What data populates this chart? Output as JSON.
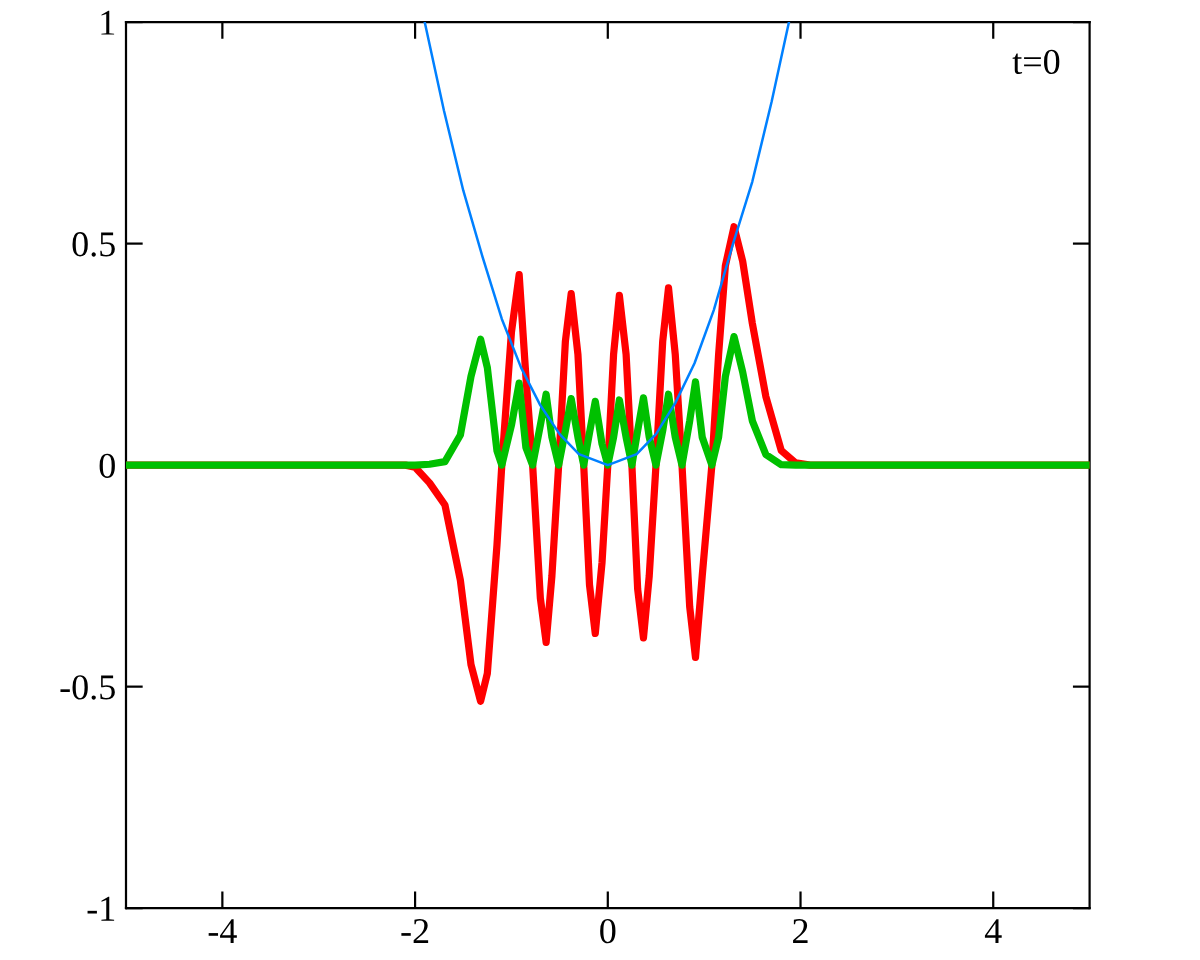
{
  "chart_data": {
    "type": "line",
    "xlim": [
      -5,
      5
    ],
    "ylim": [
      -1,
      1
    ],
    "xticks": [
      -4,
      -2,
      0,
      2,
      4
    ],
    "yticks": [
      -1,
      -0.5,
      0,
      0.5,
      1
    ],
    "grid": false,
    "legend": false,
    "marker": "none",
    "line_style": "solid",
    "annotations": [
      "t=0"
    ],
    "series": [
      {
        "color": "#0080ff",
        "x": [
          -1.9,
          -1.7,
          -1.5,
          -1.3,
          -1.1,
          -0.9,
          -0.7,
          -0.5,
          -0.3,
          0,
          0.3,
          0.5,
          0.7,
          0.9,
          1.1,
          1.3,
          1.5,
          1.7,
          1.88
        ],
        "values": [
          1.0,
          0.8,
          0.62,
          0.47,
          0.33,
          0.22,
          0.135,
          0.07,
          0.025,
          0,
          0.025,
          0.07,
          0.14,
          0.23,
          0.35,
          0.5,
          0.64,
          0.82,
          1.0
        ]
      },
      {
        "color": "#ff0000",
        "x": [
          -5,
          -2.1,
          -2.0,
          -1.85,
          -1.69,
          -1.53,
          -1.42,
          -1.32,
          -1.25,
          -1.15,
          -1.1,
          -1.0,
          -0.92,
          -0.85,
          -0.78,
          -0.7,
          -0.64,
          -0.58,
          -0.51,
          -0.44,
          -0.38,
          -0.31,
          -0.25,
          -0.19,
          -0.13,
          -0.06,
          0,
          0.06,
          0.12,
          0.19,
          0.25,
          0.31,
          0.37,
          0.43,
          0.5,
          0.57,
          0.63,
          0.7,
          0.77,
          0.85,
          0.91,
          0.98,
          1.08,
          1.15,
          1.22,
          1.31,
          1.4,
          1.5,
          1.64,
          1.8,
          1.95,
          2.1,
          5
        ],
        "values": [
          0,
          0,
          -0.005,
          -0.04,
          -0.09,
          -0.26,
          -0.45,
          -0.533,
          -0.47,
          -0.18,
          0,
          0.3,
          0.43,
          0.2,
          0,
          -0.3,
          -0.4,
          -0.25,
          0,
          0.28,
          0.387,
          0.25,
          0,
          -0.27,
          -0.38,
          -0.22,
          0,
          0.25,
          0.383,
          0.25,
          0,
          -0.28,
          -0.39,
          -0.25,
          0,
          0.28,
          0.4,
          0.25,
          0,
          -0.32,
          -0.434,
          -0.25,
          0,
          0.25,
          0.45,
          0.538,
          0.46,
          0.32,
          0.155,
          0.033,
          0.005,
          0,
          0
        ]
      },
      {
        "color": "#00c000",
        "x": [
          -5,
          -2.0,
          -1.85,
          -1.69,
          -1.53,
          -1.42,
          -1.32,
          -1.25,
          -1.15,
          -1.1,
          -1.0,
          -0.92,
          -0.85,
          -0.78,
          -0.7,
          -0.64,
          -0.58,
          -0.51,
          -0.44,
          -0.38,
          -0.31,
          -0.25,
          -0.19,
          -0.13,
          -0.06,
          0,
          0.06,
          0.12,
          0.19,
          0.25,
          0.31,
          0.37,
          0.43,
          0.5,
          0.57,
          0.63,
          0.7,
          0.77,
          0.85,
          0.91,
          0.98,
          1.08,
          1.15,
          1.22,
          1.31,
          1.4,
          1.5,
          1.64,
          1.8,
          1.95,
          5
        ],
        "values": [
          0,
          0,
          0.002,
          0.008,
          0.068,
          0.2,
          0.284,
          0.22,
          0.032,
          0,
          0.09,
          0.185,
          0.04,
          0,
          0.09,
          0.16,
          0.063,
          0,
          0.078,
          0.15,
          0.063,
          0,
          0.073,
          0.144,
          0.048,
          0,
          0.063,
          0.147,
          0.063,
          0,
          0.078,
          0.152,
          0.063,
          0,
          0.078,
          0.16,
          0.063,
          0,
          0.1,
          0.188,
          0.063,
          0,
          0.063,
          0.2,
          0.29,
          0.21,
          0.1,
          0.024,
          0.001,
          0,
          0
        ]
      }
    ]
  }
}
